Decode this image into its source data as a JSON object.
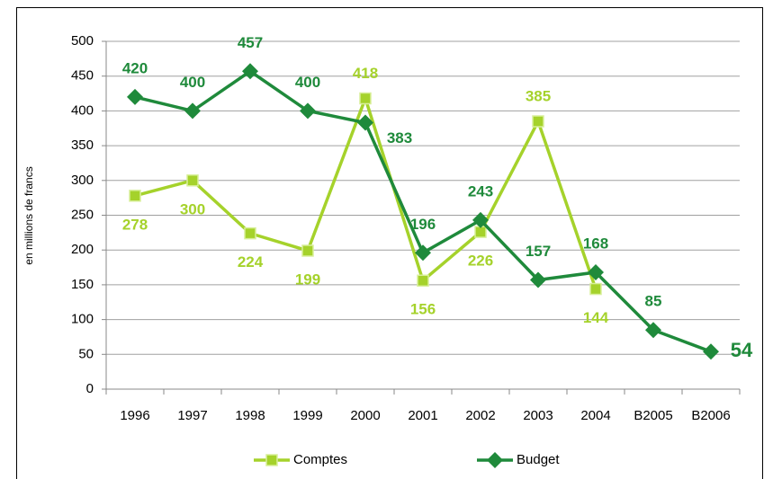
{
  "chart_data": {
    "type": "line",
    "y_label": "en millions de francs",
    "categories": [
      "1996",
      "1997",
      "1998",
      "1999",
      "2000",
      "2001",
      "2002",
      "2003",
      "2004",
      "B2005",
      "B2006"
    ],
    "series": [
      {
        "name": "Comptes",
        "color": "#a5d22b",
        "marker": "square",
        "values": [
          278,
          300,
          224,
          199,
          418,
          156,
          226,
          385,
          144,
          null,
          null
        ]
      },
      {
        "name": "Budget",
        "color": "#1f8a3b",
        "marker": "diamond",
        "values": [
          420,
          400,
          457,
          400,
          383,
          196,
          243,
          157,
          168,
          85,
          54
        ]
      }
    ],
    "ylim": [
      0,
      500
    ],
    "yticks": [
      0,
      50,
      100,
      150,
      200,
      250,
      300,
      350,
      400,
      450,
      500
    ],
    "grid": true,
    "legend": "bottom"
  }
}
